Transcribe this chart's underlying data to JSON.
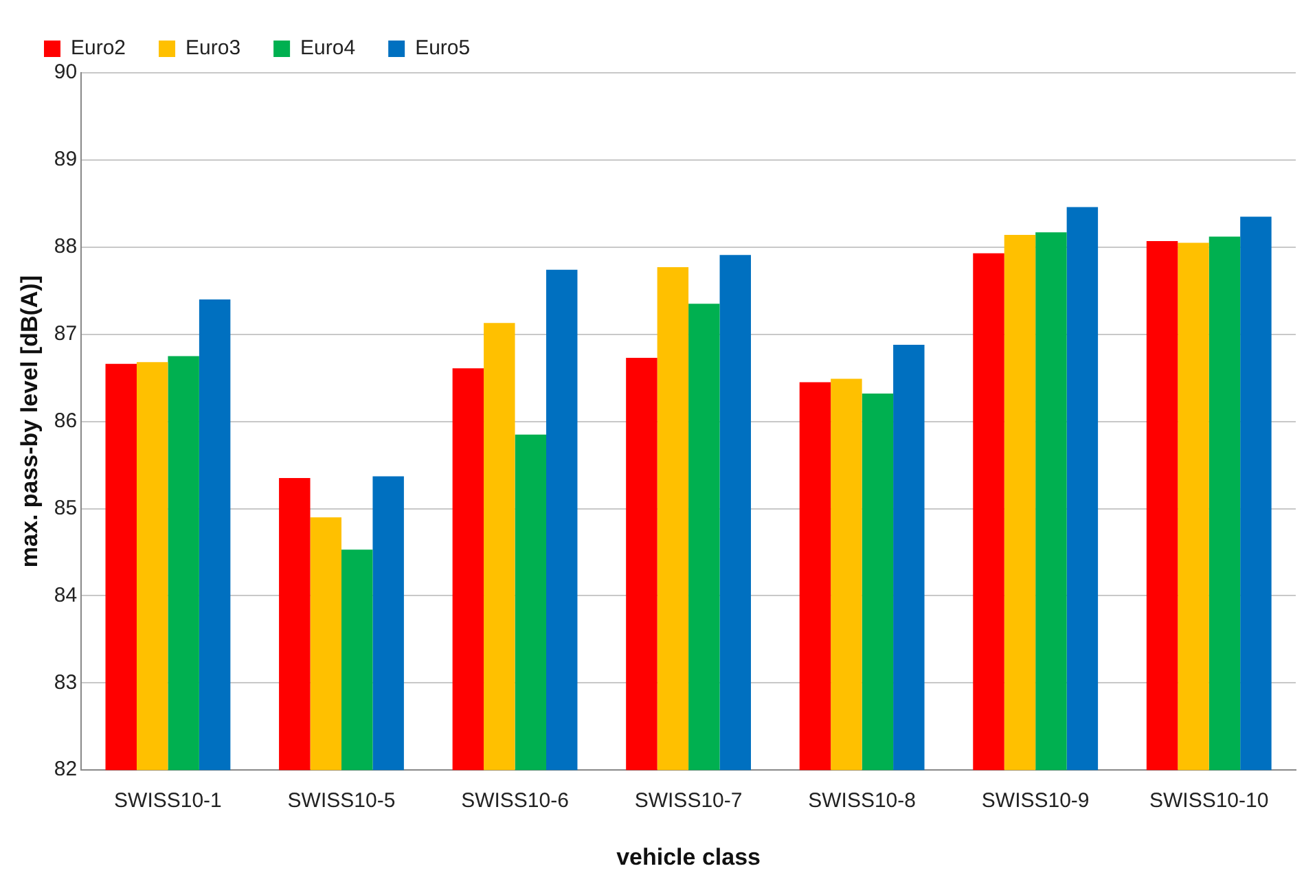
{
  "chart_data": {
    "type": "bar",
    "xlabel": "vehicle class",
    "ylabel": "max. pass-by level [dB(A)]",
    "categories": [
      "SWISS10-1",
      "SWISS10-5",
      "SWISS10-6",
      "SWISS10-7",
      "SWISS10-8",
      "SWISS10-9",
      "SWISS10-10"
    ],
    "series": [
      {
        "name": "Euro2",
        "color": "#ff0000",
        "values": [
          86.66,
          85.35,
          86.61,
          86.73,
          86.45,
          87.93,
          88.07
        ]
      },
      {
        "name": "Euro3",
        "color": "#ffc000",
        "values": [
          86.68,
          84.9,
          87.13,
          87.77,
          86.49,
          88.14,
          88.05
        ]
      },
      {
        "name": "Euro4",
        "color": "#00b050",
        "values": [
          86.75,
          84.53,
          85.85,
          87.35,
          86.32,
          88.17,
          88.12
        ]
      },
      {
        "name": "Euro5",
        "color": "#0070c0",
        "values": [
          87.4,
          85.37,
          87.74,
          87.91,
          86.88,
          88.46,
          88.35
        ]
      }
    ],
    "ylim": [
      82,
      90
    ],
    "yticks": [
      82,
      83,
      84,
      85,
      86,
      87,
      88,
      89,
      90
    ],
    "grid": "y",
    "legend": "top left"
  }
}
